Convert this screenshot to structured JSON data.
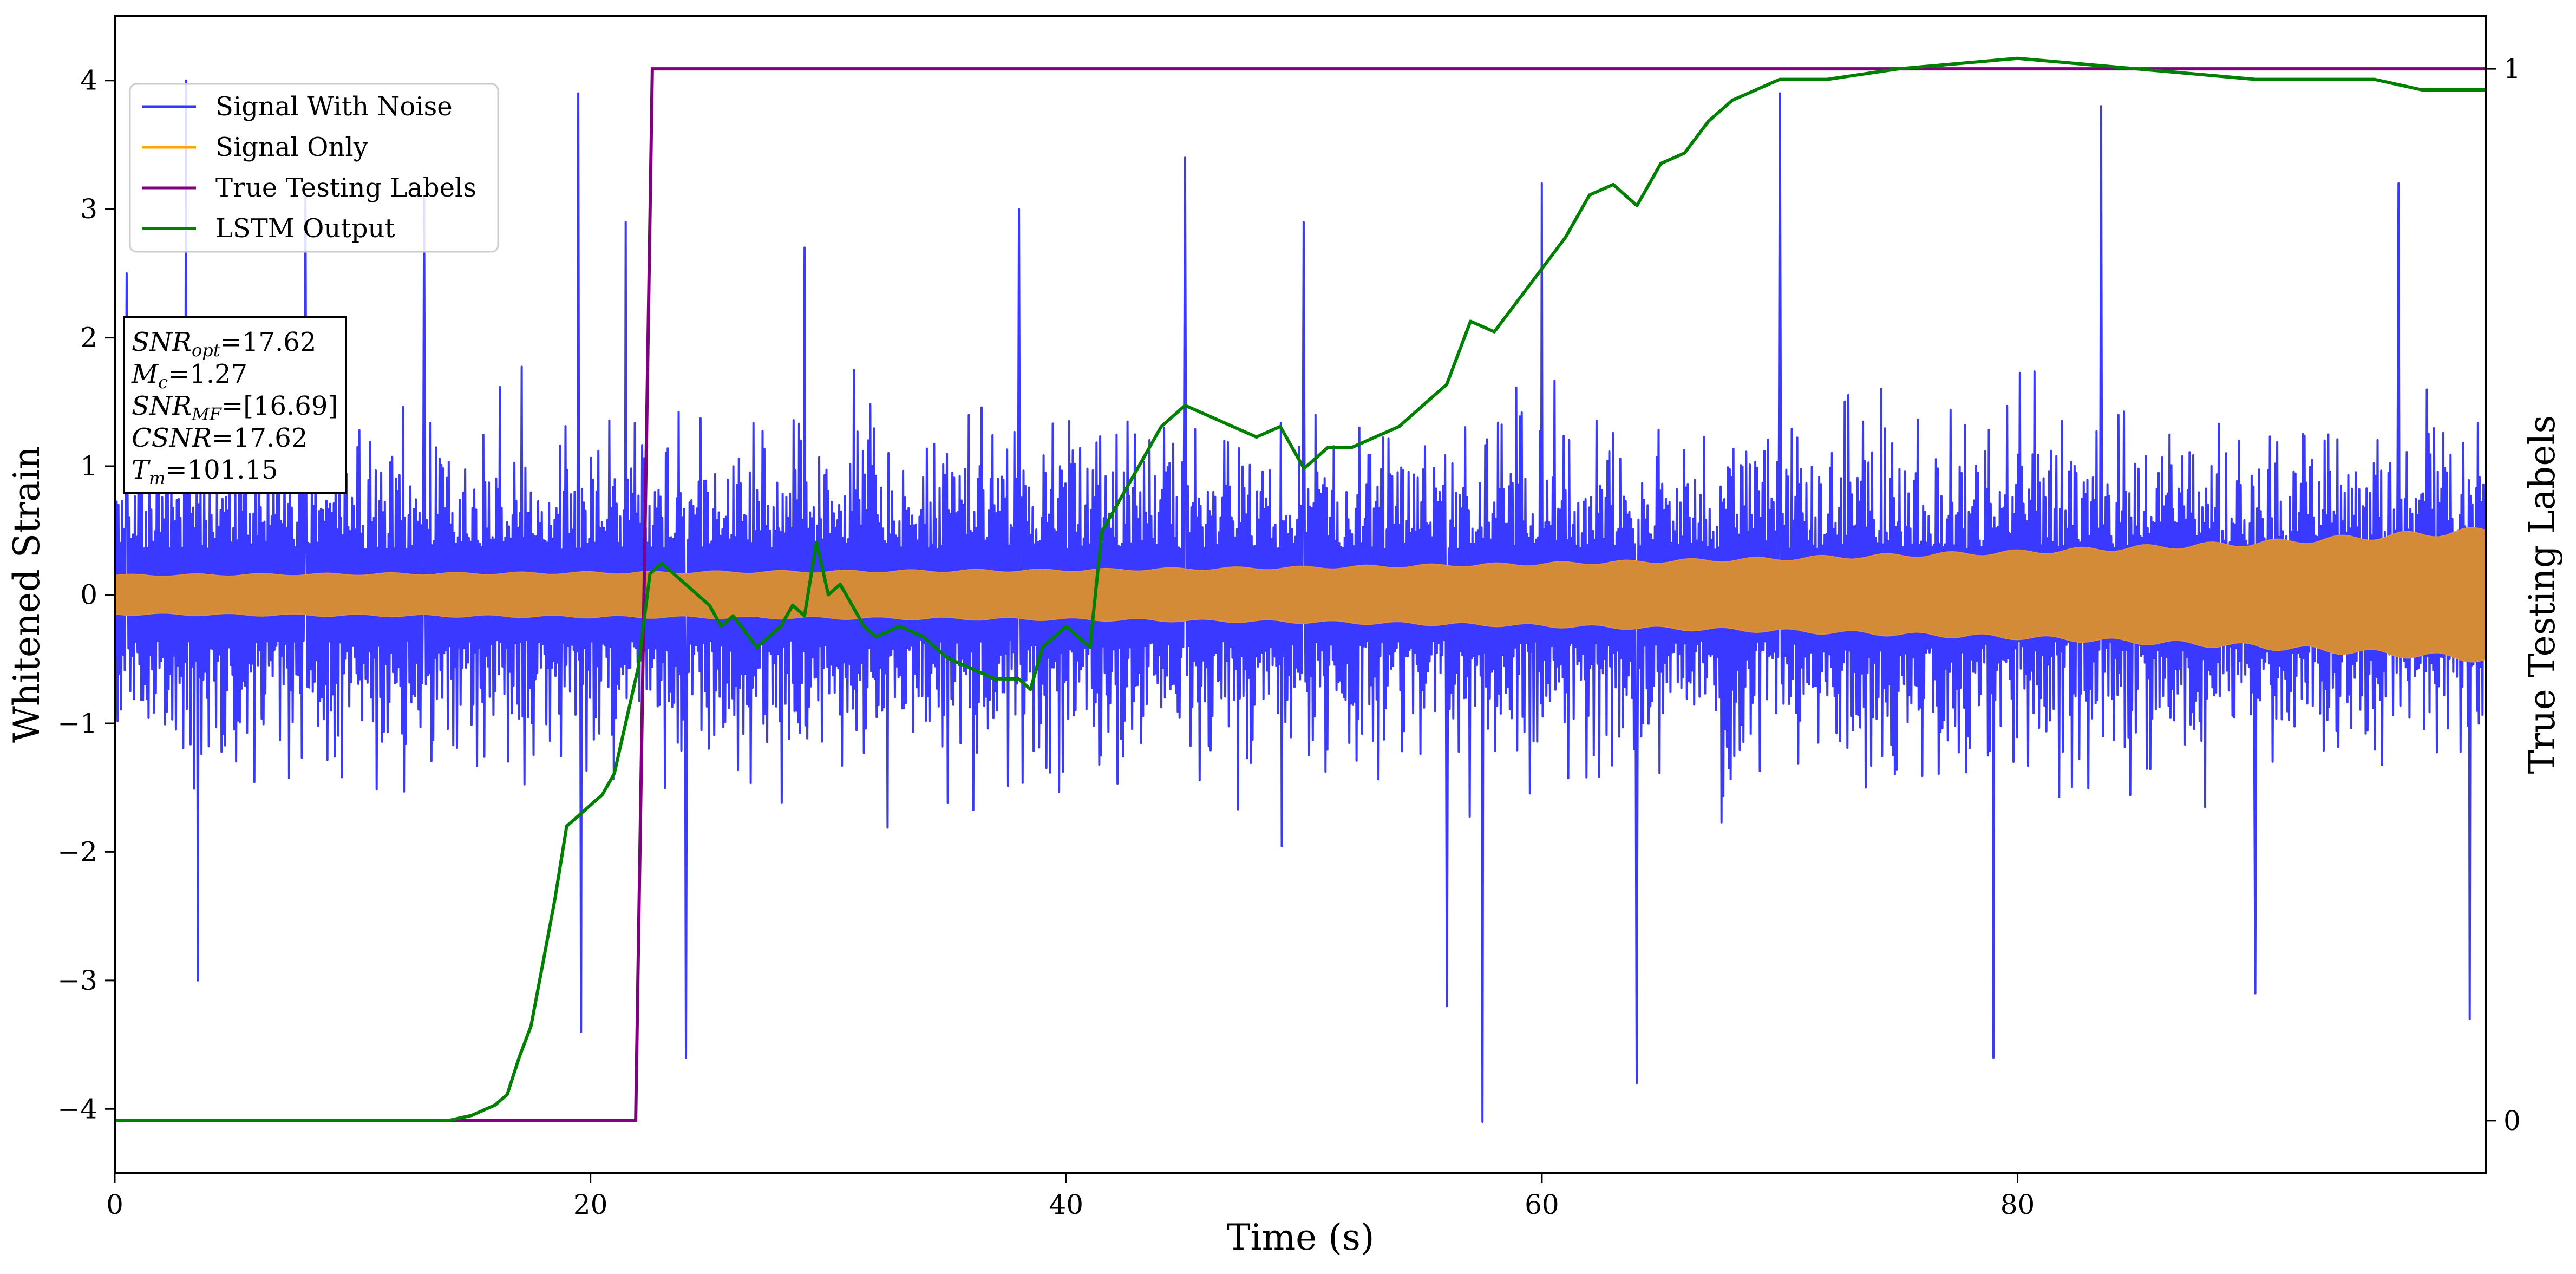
{
  "chart_data": {
    "type": "line",
    "xlabel": "Time (s)",
    "ylabel": "Whitened Strain",
    "ylabel_right": "True Testing Labels",
    "xlim": [
      0,
      99.7
    ],
    "ylim": [
      -4.5,
      4.5
    ],
    "ylim_right": [
      -0.05,
      1.05
    ],
    "xticks": [
      0,
      20,
      40,
      60,
      80
    ],
    "yticks": [
      -4,
      -3,
      -2,
      -1,
      0,
      1,
      2,
      3,
      4
    ],
    "yticks_right": [
      0,
      1
    ],
    "grid": false,
    "legend_position": "top-left",
    "annotation": {
      "lines": [
        {
          "name": "SNR",
          "sub": "opt",
          "value": "=17.62"
        },
        {
          "name": "M",
          "sub": "c",
          "value": "=1.27"
        },
        {
          "name": "SNR",
          "sub": "MF",
          "value": "=[16.69]"
        },
        {
          "name": "CSNR",
          "sub": "",
          "value": "=17.62"
        },
        {
          "name": "T",
          "sub": "m",
          "value": "=101.15"
        }
      ]
    },
    "series": [
      {
        "name": "Signal With Noise",
        "color": "#3333ff",
        "axis": "left",
        "description_range": [
          -4.0,
          4.0
        ],
        "typical_envelope": [
          -1.3,
          1.3
        ],
        "sample_peaks": [
          [
            0.5,
            2.5
          ],
          [
            3.0,
            4.0
          ],
          [
            3.5,
            -3.0
          ],
          [
            8.0,
            3.1
          ],
          [
            13.0,
            3.1
          ],
          [
            19.5,
            3.9
          ],
          [
            19.6,
            -3.4
          ],
          [
            21.5,
            2.9
          ],
          [
            24.0,
            -3.6
          ],
          [
            29.0,
            2.7
          ],
          [
            38.0,
            3.0
          ],
          [
            45.0,
            3.4
          ],
          [
            50.0,
            2.9
          ],
          [
            56.0,
            -3.2
          ],
          [
            57.5,
            -4.1
          ],
          [
            60.0,
            3.2
          ],
          [
            64.0,
            -3.8
          ],
          [
            70.0,
            3.9
          ],
          [
            79.0,
            -3.6
          ],
          [
            83.5,
            3.8
          ],
          [
            90.0,
            -3.1
          ],
          [
            96.0,
            3.2
          ],
          [
            99.0,
            -3.3
          ]
        ]
      },
      {
        "name": "Signal Only",
        "color": "#ffa500",
        "axis": "left",
        "envelope": {
          "x": [
            0,
            10,
            20,
            30,
            40,
            50,
            60,
            70,
            80,
            90,
            99.7
          ],
          "amplitude": [
            0.15,
            0.16,
            0.17,
            0.18,
            0.19,
            0.21,
            0.24,
            0.28,
            0.33,
            0.4,
            0.5
          ]
        }
      },
      {
        "name": "True Testing Labels",
        "color": "#800080",
        "axis": "right",
        "x": [
          0,
          21.9,
          22.6,
          99.7
        ],
        "y": [
          0,
          0,
          1,
          1
        ]
      },
      {
        "name": "LSTM Output",
        "color": "#008000",
        "axis": "right",
        "x": [
          0,
          14,
          15,
          16,
          16.5,
          17,
          17.5,
          18,
          18.5,
          19,
          19.5,
          20,
          20.5,
          21,
          21.5,
          22,
          22.5,
          23,
          23.5,
          24,
          24.5,
          25,
          25.5,
          26,
          27,
          28,
          28.5,
          29,
          29.5,
          30,
          30.5,
          31,
          31.5,
          32,
          33,
          34,
          35,
          36,
          37,
          38,
          38.5,
          39,
          40,
          41,
          41.5,
          42,
          43,
          44,
          45,
          46,
          47,
          48,
          49,
          50,
          51,
          52,
          53,
          54,
          55,
          56,
          57,
          58,
          59,
          60,
          61,
          62,
          63,
          64,
          65,
          66,
          67,
          68,
          69,
          70,
          72,
          75,
          80,
          85,
          90,
          95,
          97,
          99.7
        ],
        "y": [
          0,
          0,
          0.005,
          0.015,
          0.025,
          0.06,
          0.09,
          0.15,
          0.21,
          0.28,
          0.29,
          0.3,
          0.31,
          0.33,
          0.38,
          0.43,
          0.52,
          0.53,
          0.52,
          0.51,
          0.5,
          0.49,
          0.47,
          0.48,
          0.45,
          0.47,
          0.49,
          0.48,
          0.55,
          0.5,
          0.51,
          0.49,
          0.47,
          0.46,
          0.47,
          0.46,
          0.44,
          0.43,
          0.42,
          0.42,
          0.41,
          0.45,
          0.47,
          0.45,
          0.56,
          0.58,
          0.62,
          0.66,
          0.68,
          0.67,
          0.66,
          0.65,
          0.66,
          0.62,
          0.64,
          0.64,
          0.65,
          0.66,
          0.68,
          0.7,
          0.76,
          0.75,
          0.78,
          0.81,
          0.84,
          0.88,
          0.89,
          0.87,
          0.91,
          0.92,
          0.95,
          0.97,
          0.98,
          0.99,
          0.99,
          1.0,
          1.01,
          1.0,
          0.99,
          0.99,
          0.98,
          0.98
        ]
      }
    ]
  }
}
